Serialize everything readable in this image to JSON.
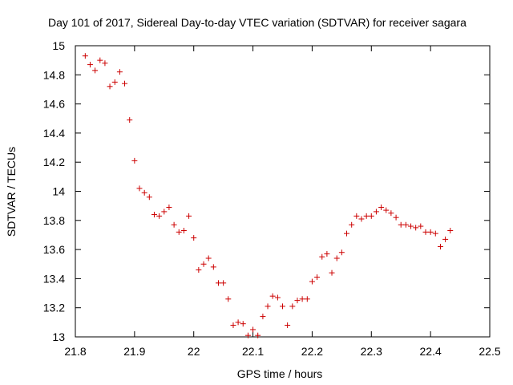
{
  "chart_data": {
    "type": "scatter",
    "title": "Day 101 of 2017, Sidereal Day-to-day VTEC variation (SDTVAR) for receiver sagara",
    "xlabel": "GPS time / hours",
    "ylabel": "SDTVAR / TECUs",
    "xlim": [
      21.8,
      22.5
    ],
    "ylim": [
      13,
      15
    ],
    "xticks": [
      "21.8",
      "21.9",
      "22",
      "22.1",
      "22.2",
      "22.3",
      "22.4",
      "22.5"
    ],
    "yticks": [
      "13",
      "13.2",
      "13.4",
      "13.6",
      "13.8",
      "14",
      "14.2",
      "14.4",
      "14.6",
      "14.8",
      "15"
    ],
    "grid": false,
    "marker": "+",
    "series": [
      {
        "name": "SDTVAR",
        "color": "#cc0000",
        "x": [
          21.8167,
          21.825,
          21.8333,
          21.8417,
          21.85,
          21.8583,
          21.8667,
          21.875,
          21.8833,
          21.8917,
          21.9,
          21.9083,
          21.9167,
          21.925,
          21.9333,
          21.9417,
          21.95,
          21.9583,
          21.9667,
          21.975,
          21.9833,
          21.9917,
          22.0,
          22.0083,
          22.0167,
          22.025,
          22.0333,
          22.0417,
          22.05,
          22.0583,
          22.0667,
          22.075,
          22.0833,
          22.0917,
          22.1,
          22.1083,
          22.1167,
          22.125,
          22.1333,
          22.1417,
          22.15,
          22.1583,
          22.1667,
          22.175,
          22.1833,
          22.1917,
          22.2,
          22.2083,
          22.2167,
          22.225,
          22.2333,
          22.2417,
          22.25,
          22.2583,
          22.2667,
          22.275,
          22.2833,
          22.2917,
          22.3,
          22.3083,
          22.3167,
          22.325,
          22.3333,
          22.3417,
          22.35,
          22.3583,
          22.3667,
          22.375,
          22.3833,
          22.3917,
          22.4,
          22.4083,
          22.4167,
          22.425,
          22.4333
        ],
        "y": [
          14.93,
          14.87,
          14.83,
          14.9,
          14.88,
          14.72,
          14.75,
          14.82,
          14.74,
          14.49,
          14.21,
          14.02,
          13.99,
          13.96,
          13.84,
          13.83,
          13.86,
          13.89,
          13.77,
          13.72,
          13.73,
          13.83,
          13.68,
          13.46,
          13.5,
          13.54,
          13.48,
          13.37,
          13.37,
          13.26,
          13.08,
          13.1,
          13.09,
          13.01,
          13.05,
          13.01,
          13.14,
          13.21,
          13.28,
          13.27,
          13.21,
          13.08,
          13.21,
          13.25,
          13.26,
          13.26,
          13.38,
          13.41,
          13.55,
          13.57,
          13.44,
          13.54,
          13.58,
          13.71,
          13.77,
          13.83,
          13.81,
          13.83,
          13.83,
          13.86,
          13.89,
          13.87,
          13.85,
          13.82,
          13.77,
          13.77,
          13.76,
          13.75,
          13.76,
          13.72,
          13.72,
          13.71,
          13.62,
          13.67,
          13.73
        ]
      }
    ]
  }
}
